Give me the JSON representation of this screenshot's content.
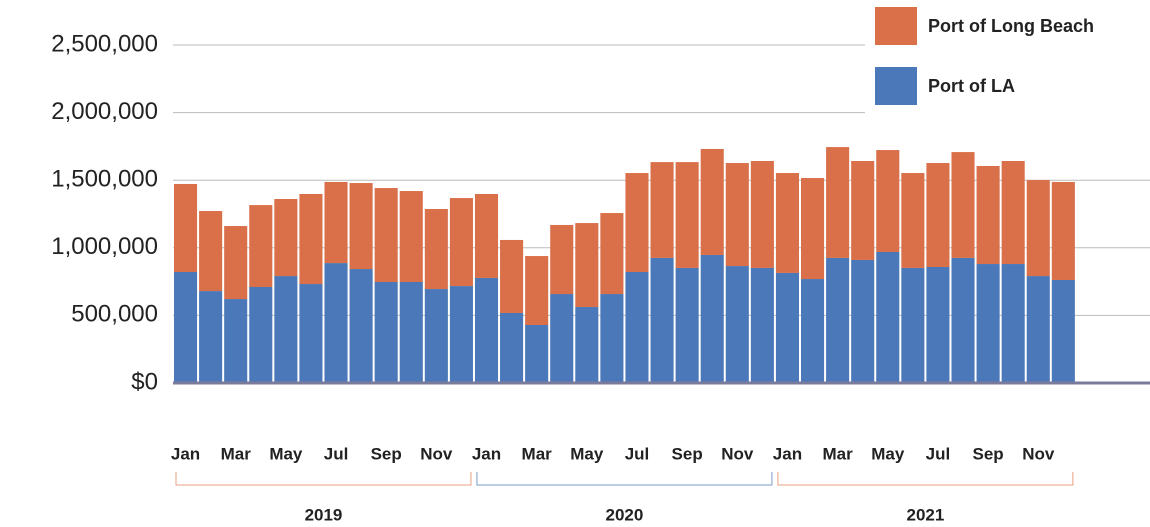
{
  "chart_data": {
    "type": "stacked_bar",
    "categories": [
      "Jan",
      null,
      "Mar",
      null,
      "May",
      null,
      "Jul",
      null,
      "Sep",
      null,
      "Nov",
      null,
      "Jan",
      null,
      "Mar",
      null,
      "May",
      null,
      "Jul",
      null,
      "Sep",
      null,
      "Nov",
      null,
      "Jan",
      null,
      "Mar",
      null,
      "May",
      null,
      "Jul",
      null,
      "Sep",
      null,
      "Nov",
      null
    ],
    "groups": [
      "2019",
      "2020",
      "2021"
    ],
    "series": [
      {
        "name": "Port of LA",
        "color": "#4a78b8",
        "values": [
          821000,
          680000,
          621000,
          710000,
          791000,
          732000,
          887000,
          843000,
          747000,
          747000,
          695000,
          717000,
          777000,
          518000,
          429000,
          658000,
          562000,
          658000,
          821000,
          925000,
          851000,
          947000,
          865000,
          851000,
          814000,
          769000,
          925000,
          910000,
          969000,
          851000,
          858000,
          925000,
          880000,
          880000,
          791000,
          762000
        ]
      },
      {
        "name": "Port of Long Beach",
        "color": "#d9704a",
        "values": [
          651000,
          592000,
          540000,
          606000,
          570000,
          666000,
          600000,
          636000,
          695000,
          673000,
          592000,
          651000,
          621000,
          540000,
          510000,
          511000,
          621000,
          599000,
          732000,
          709000,
          783000,
          784000,
          762000,
          791000,
          739000,
          747000,
          820000,
          732000,
          754000,
          702000,
          769000,
          783000,
          725000,
          762000,
          710000,
          725000
        ]
      }
    ],
    "ylim": [
      0,
      2500000
    ],
    "yticks": [
      {
        "value": 0,
        "label": "$0"
      },
      {
        "value": 500000,
        "label": "500,000"
      },
      {
        "value": 1000000,
        "label": "1,000,000"
      },
      {
        "value": 1500000,
        "label": "1,500,000"
      },
      {
        "value": 2000000,
        "label": "2,000,000"
      },
      {
        "value": 2500000,
        "label": "2,500,000"
      }
    ],
    "grid": true,
    "legend": "top-right"
  }
}
